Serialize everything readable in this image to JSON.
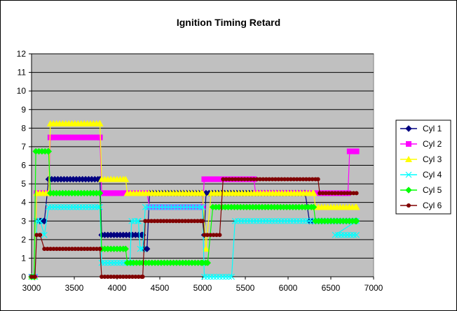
{
  "chart_data": {
    "type": "line",
    "title": "Ignition Timing Retard",
    "xlabel": "",
    "ylabel": "",
    "xlim": [
      3000,
      7000
    ],
    "ylim": [
      0,
      12
    ],
    "x_ticks": [
      3000,
      3500,
      4000,
      4500,
      5000,
      5500,
      6000,
      6500,
      7000
    ],
    "y_ticks": [
      0,
      1,
      2,
      3,
      4,
      5,
      6,
      7,
      8,
      9,
      10,
      11,
      12
    ],
    "grid": "horizontal",
    "plot_background": "#c0c0c0",
    "legend_position": "right",
    "series": [
      {
        "name": "Cyl 1",
        "color": "#000080",
        "marker": "diamond",
        "points": [
          [
            3000,
            0
          ],
          [
            3040,
            0
          ],
          [
            3060,
            3
          ],
          [
            3110,
            3
          ],
          [
            3150,
            3
          ],
          [
            3200,
            5.25
          ],
          [
            3800,
            5.25
          ],
          [
            3820,
            2.25
          ],
          [
            4300,
            2.25
          ],
          [
            4320,
            1.5
          ],
          [
            4350,
            1.5
          ],
          [
            4380,
            4.5
          ],
          [
            5000,
            4.5
          ],
          [
            5020,
            2.25
          ],
          [
            5040,
            4.5
          ],
          [
            6200,
            4.5
          ],
          [
            6250,
            3
          ],
          [
            6800,
            3
          ]
        ]
      },
      {
        "name": "Cyl 2",
        "color": "#ff00ff",
        "marker": "square",
        "points": [
          [
            3000,
            0
          ],
          [
            3040,
            0
          ],
          [
            3060,
            4.5
          ],
          [
            3200,
            4.5
          ],
          [
            3220,
            7.5
          ],
          [
            3800,
            7.5
          ],
          [
            3820,
            4.5
          ],
          [
            4350,
            4.5
          ],
          [
            4380,
            3.75
          ],
          [
            5000,
            3.75
          ],
          [
            5020,
            5.25
          ],
          [
            5600,
            5.25
          ],
          [
            5620,
            4.5
          ],
          [
            6700,
            4.5
          ],
          [
            6720,
            6.75
          ],
          [
            6800,
            6.75
          ]
        ]
      },
      {
        "name": "Cyl 3",
        "color": "#ffff00",
        "marker": "triangle",
        "points": [
          [
            3000,
            0
          ],
          [
            3040,
            0
          ],
          [
            3060,
            4.5
          ],
          [
            3200,
            4.5
          ],
          [
            3220,
            8.25
          ],
          [
            3800,
            8.25
          ],
          [
            3820,
            5.25
          ],
          [
            4100,
            5.25
          ],
          [
            4120,
            4.5
          ],
          [
            5000,
            4.5
          ],
          [
            5040,
            1.5
          ],
          [
            5100,
            4.5
          ],
          [
            6300,
            4.5
          ],
          [
            6320,
            3.75
          ],
          [
            6800,
            3.75
          ]
        ]
      },
      {
        "name": "Cyl 4",
        "color": "#00ffff",
        "marker": "x",
        "points": [
          [
            3000,
            0
          ],
          [
            3040,
            0
          ],
          [
            3060,
            3
          ],
          [
            3100,
            3
          ],
          [
            3150,
            2.25
          ],
          [
            3200,
            3.75
          ],
          [
            3800,
            3.75
          ],
          [
            3820,
            0.75
          ],
          [
            4150,
            0.75
          ],
          [
            4170,
            3
          ],
          [
            4250,
            3
          ],
          [
            4270,
            1.5
          ],
          [
            4300,
            1.5
          ],
          [
            4330,
            3.75
          ],
          [
            5000,
            3.75
          ],
          [
            5020,
            0
          ],
          [
            5340,
            0
          ],
          [
            5380,
            3
          ],
          [
            6800,
            3
          ],
          [
            6550,
            2.25
          ],
          [
            6800,
            2.25
          ]
        ]
      },
      {
        "name": "Cyl 5",
        "color": "#00ff00",
        "marker": "diamond",
        "points": [
          [
            3000,
            0
          ],
          [
            3030,
            0
          ],
          [
            3050,
            6.75
          ],
          [
            3200,
            6.75
          ],
          [
            3220,
            4.5
          ],
          [
            3800,
            4.5
          ],
          [
            3820,
            1.5
          ],
          [
            4100,
            1.5
          ],
          [
            4120,
            0.75
          ],
          [
            5000,
            0.75
          ],
          [
            5060,
            0.75
          ],
          [
            5120,
            3.75
          ],
          [
            6300,
            3.75
          ],
          [
            6320,
            3
          ],
          [
            6800,
            3
          ]
        ]
      },
      {
        "name": "Cyl 6",
        "color": "#800000",
        "marker": "circle",
        "points": [
          [
            3000,
            0
          ],
          [
            3040,
            0
          ],
          [
            3060,
            2.25
          ],
          [
            3100,
            2.25
          ],
          [
            3150,
            1.5
          ],
          [
            3800,
            1.5
          ],
          [
            3820,
            0
          ],
          [
            4300,
            0
          ],
          [
            4330,
            3
          ],
          [
            5000,
            3
          ],
          [
            5020,
            2.25
          ],
          [
            5200,
            2.25
          ],
          [
            5240,
            5.25
          ],
          [
            6350,
            5.25
          ],
          [
            6370,
            4.5
          ],
          [
            6800,
            4.5
          ]
        ]
      }
    ]
  }
}
